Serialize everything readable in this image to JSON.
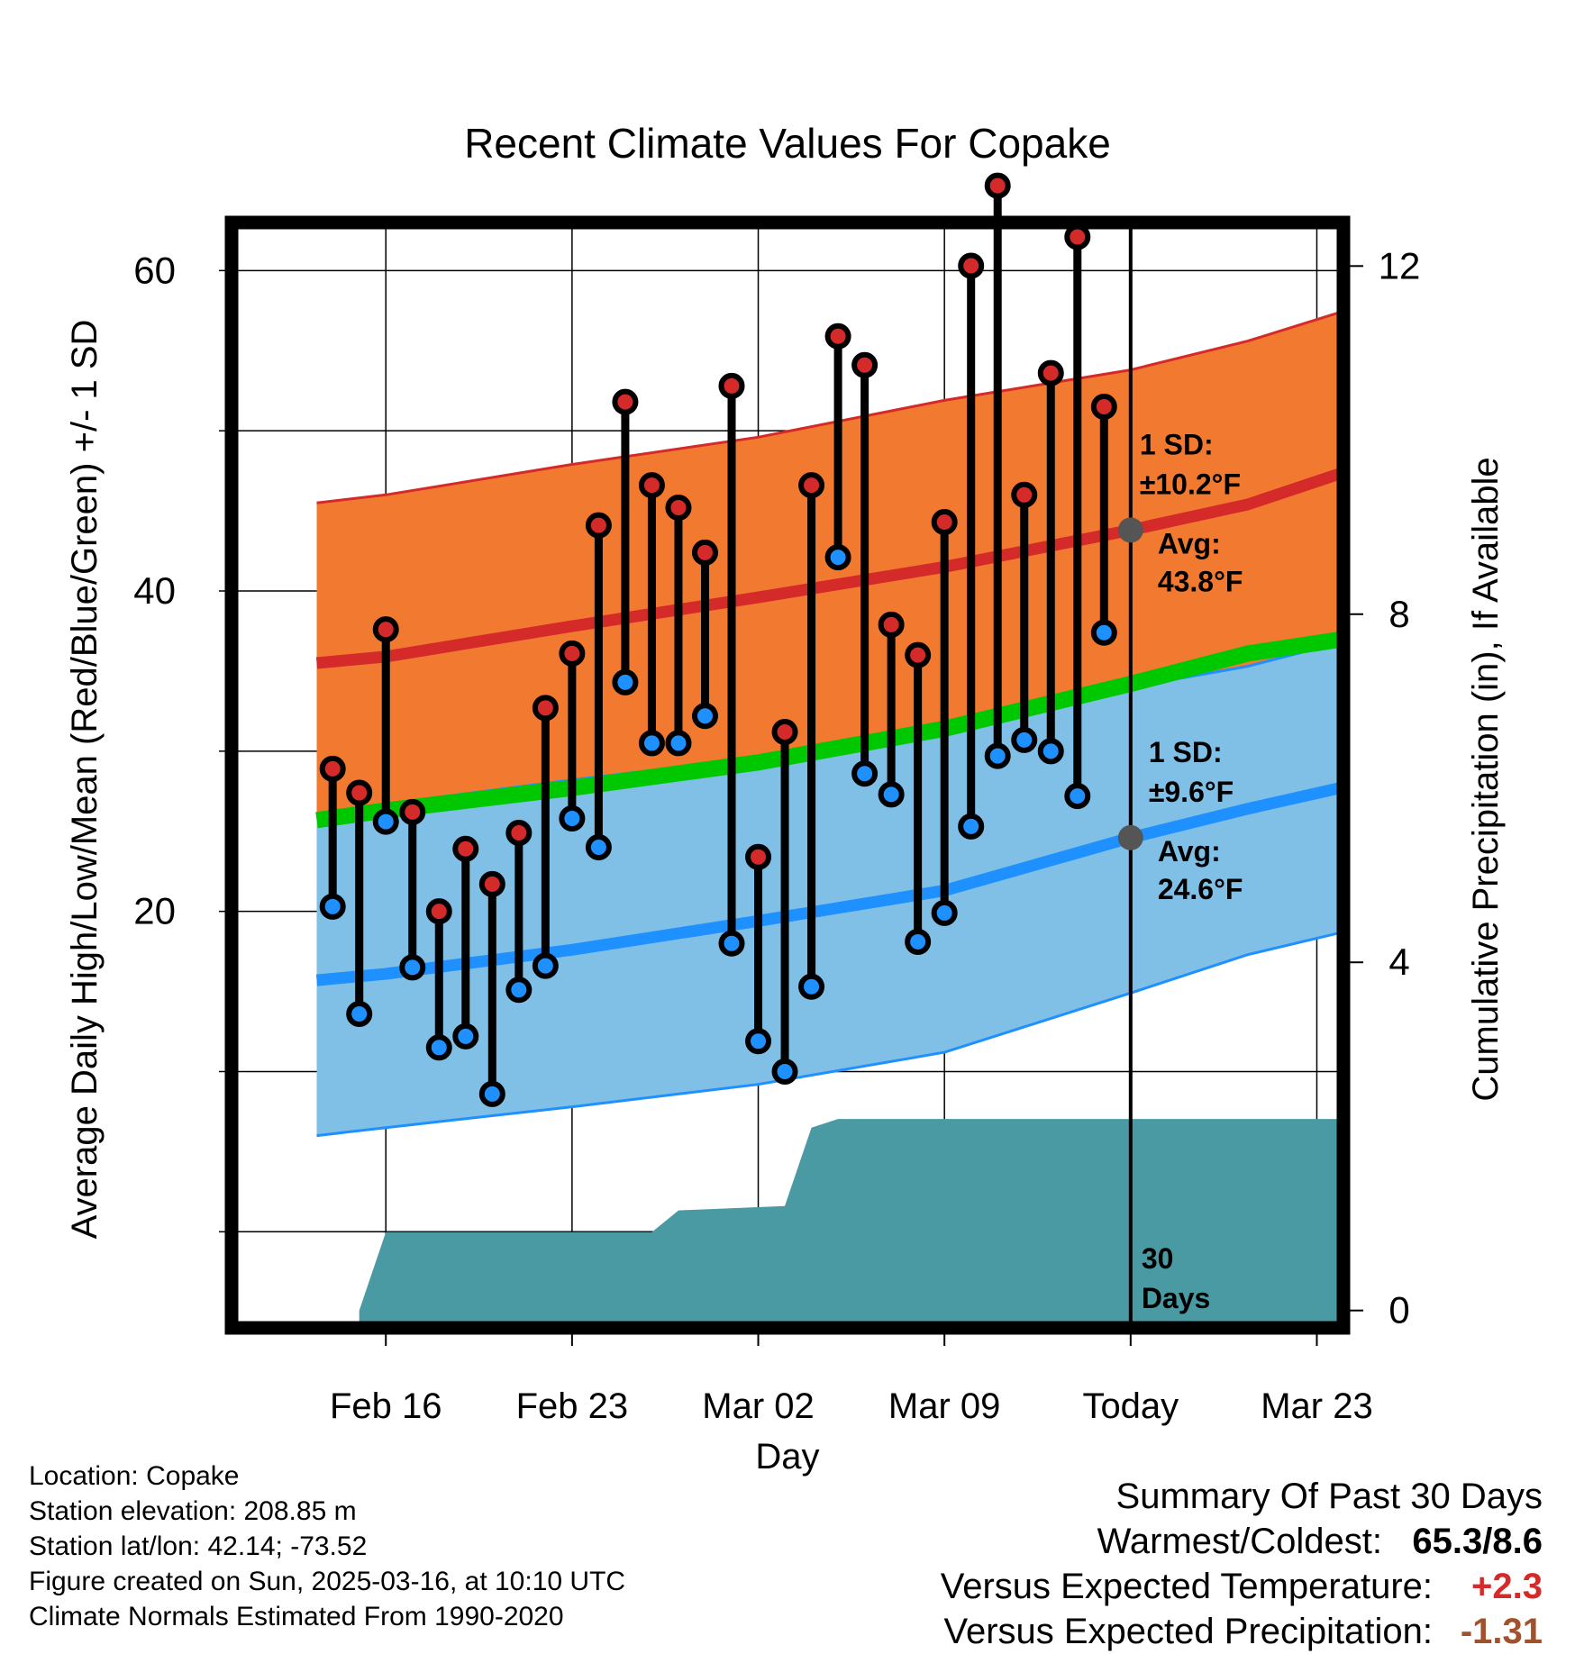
{
  "chart_data": {
    "type": "line",
    "title": "Recent Climate Values For Copake",
    "xlabel": "Day",
    "ylabel": "Average Daily High/Low/Mean (Red/Blue/Green) +/- 1 SD",
    "y2label": "Cumulative Precipitation (in), If Available",
    "ylim": [
      -6,
      63
    ],
    "y2lim": [
      -0.2,
      12.5
    ],
    "xlim": [
      -5.8,
      36
    ],
    "grid": true,
    "x_tick_labels": [
      {
        "day": 0,
        "label": "Feb 16"
      },
      {
        "day": 7,
        "label": "Feb 23"
      },
      {
        "day": 14,
        "label": "Mar 02"
      },
      {
        "day": 21,
        "label": "Mar 09"
      },
      {
        "day": 28,
        "label": "Today"
      },
      {
        "day": 35,
        "label": "Mar 23"
      }
    ],
    "y_ticks": [
      20,
      40,
      60
    ],
    "y2_ticks": [
      0,
      4,
      8,
      12
    ],
    "today_day": 28,
    "normal_high": {
      "mean": [
        [
          -2.6,
          35.5
        ],
        [
          0,
          35.9
        ],
        [
          7,
          37.8
        ],
        [
          14,
          39.6
        ],
        [
          21,
          41.5
        ],
        [
          28,
          43.8
        ],
        [
          32.4,
          45.4
        ],
        [
          38,
          48.5
        ]
      ],
      "sd_upper": [
        [
          -2.6,
          45.5
        ],
        [
          0,
          46.0
        ],
        [
          7,
          47.9
        ],
        [
          14,
          49.6
        ],
        [
          21,
          51.9
        ],
        [
          28,
          53.8
        ],
        [
          32.4,
          55.6
        ],
        [
          38,
          58.5
        ]
      ],
      "sd_lower": [
        [
          -2.6,
          26.1
        ],
        [
          0,
          26.7
        ],
        [
          7,
          28.2
        ],
        [
          14,
          29.6
        ],
        [
          21,
          31.7
        ],
        [
          28,
          34.0
        ],
        [
          32.4,
          35.3
        ],
        [
          38,
          37.7
        ]
      ]
    },
    "normal_low": {
      "mean": [
        [
          -2.6,
          15.7
        ],
        [
          0,
          16.1
        ],
        [
          7,
          17.6
        ],
        [
          14,
          19.4
        ],
        [
          21,
          21.3
        ],
        [
          28,
          24.6
        ],
        [
          32.4,
          26.4
        ],
        [
          38,
          28.5
        ]
      ],
      "sd_upper": [
        [
          -2.6,
          26.1
        ],
        [
          0,
          26.7
        ],
        [
          7,
          28.2
        ],
        [
          14,
          29.6
        ],
        [
          21,
          31.7
        ],
        [
          28,
          34.0
        ],
        [
          32.4,
          35.3
        ],
        [
          38,
          37.7
        ]
      ],
      "sd_lower": [
        [
          -2.6,
          6.0
        ],
        [
          0,
          6.5
        ],
        [
          7,
          7.8
        ],
        [
          14,
          9.2
        ],
        [
          21,
          11.2
        ],
        [
          28,
          14.9
        ],
        [
          32.4,
          17.3
        ],
        [
          38,
          19.5
        ]
      ]
    },
    "normal_mean_line": [
      [
        -2.6,
        25.7
      ],
      [
        0,
        26.3
      ],
      [
        7,
        27.7
      ],
      [
        14,
        29.3
      ],
      [
        21,
        31.4
      ],
      [
        28,
        34.2
      ],
      [
        32.4,
        36.1
      ],
      [
        38,
        37.5
      ]
    ],
    "daily_high_low": [
      {
        "day": -2,
        "high": 28.9,
        "low": 20.3
      },
      {
        "day": -1,
        "high": 27.4,
        "low": 13.6
      },
      {
        "day": 0,
        "high": 37.6,
        "low": 25.6
      },
      {
        "day": 1,
        "high": 26.2,
        "low": 16.5
      },
      {
        "day": 2,
        "high": 20.0,
        "low": 11.5
      },
      {
        "day": 3,
        "high": 23.9,
        "low": 12.2
      },
      {
        "day": 4,
        "high": 21.7,
        "low": 8.6
      },
      {
        "day": 5,
        "high": 24.9,
        "low": 15.1
      },
      {
        "day": 6,
        "high": 32.7,
        "low": 16.6
      },
      {
        "day": 7,
        "high": 36.1,
        "low": 25.8
      },
      {
        "day": 8,
        "high": 44.1,
        "low": 24.0
      },
      {
        "day": 9,
        "high": 51.8,
        "low": 34.3
      },
      {
        "day": 10,
        "high": 46.6,
        "low": 30.5
      },
      {
        "day": 11,
        "high": 45.2,
        "low": 30.5
      },
      {
        "day": 12,
        "high": 42.4,
        "low": 32.2
      },
      {
        "day": 13,
        "high": 52.8,
        "low": 18.0
      },
      {
        "day": 14,
        "high": 23.4,
        "low": 11.9
      },
      {
        "day": 15,
        "high": 31.2,
        "low": 10.0
      },
      {
        "day": 16,
        "high": 46.6,
        "low": 15.3
      },
      {
        "day": 17,
        "high": 55.9,
        "low": 42.1
      },
      {
        "day": 18,
        "high": 54.1,
        "low": 28.6
      },
      {
        "day": 19,
        "high": 37.9,
        "low": 27.3
      },
      {
        "day": 20,
        "high": 36.0,
        "low": 18.1
      },
      {
        "day": 21,
        "high": 44.3,
        "low": 19.9
      },
      {
        "day": 22,
        "high": 60.3,
        "low": 25.3
      },
      {
        "day": 23,
        "high": 65.3,
        "low": 29.7
      },
      {
        "day": 24,
        "high": 46.0,
        "low": 30.7
      },
      {
        "day": 25,
        "high": 53.6,
        "low": 30.0
      },
      {
        "day": 26,
        "high": 62.1,
        "low": 27.2
      },
      {
        "day": 27,
        "high": 51.5,
        "low": 37.4
      }
    ],
    "cumulative_precip": [
      [
        -1,
        0.0
      ],
      [
        0,
        0.9
      ],
      [
        10,
        0.9
      ],
      [
        11,
        1.15
      ],
      [
        15,
        1.2
      ],
      [
        16,
        2.1
      ],
      [
        17,
        2.2
      ],
      [
        38,
        2.2
      ]
    ],
    "annotations": {
      "high": {
        "sd_label": "1 SD:",
        "sd_value": "±10.2°F",
        "avg_label": "Avg:",
        "avg_value": "43.8°F",
        "avg": 43.8
      },
      "low": {
        "sd_label": "1 SD:",
        "sd_value": "±9.6°F",
        "avg_label": "Avg:",
        "avg_value": "24.6°F",
        "avg": 24.6
      },
      "precip_label_1": "30",
      "precip_label_2": "Days"
    },
    "colors": {
      "high_band": "#f27a30",
      "high_line": "#d42a2a",
      "low_band": "#80bfe6",
      "low_line": "#1e90ff",
      "mean_line": "#00c800",
      "precip": "#4a9aa3",
      "avg_marker": "#555555",
      "annotation_text": "#555555"
    }
  },
  "footer": {
    "location": "Location: Copake",
    "elevation": "Station elevation: 208.85 m",
    "latlon": "Station lat/lon: 42.14; -73.52",
    "created": "Figure created on Sun, 2025-03-16, at 10:10 UTC",
    "normals": "Climate Normals Estimated From 1990-2020"
  },
  "summary": {
    "title": "Summary Of Past 30 Days",
    "rows": [
      {
        "label": "Warmest/Coldest:",
        "value": "65.3/8.6",
        "color": "#000000"
      },
      {
        "label": "Versus Expected Temperature:",
        "value": "+2.3",
        "color": "#d42a2a"
      },
      {
        "label": "Versus Expected Precipitation:",
        "value": "-1.31",
        "color": "#a0522d"
      }
    ]
  }
}
